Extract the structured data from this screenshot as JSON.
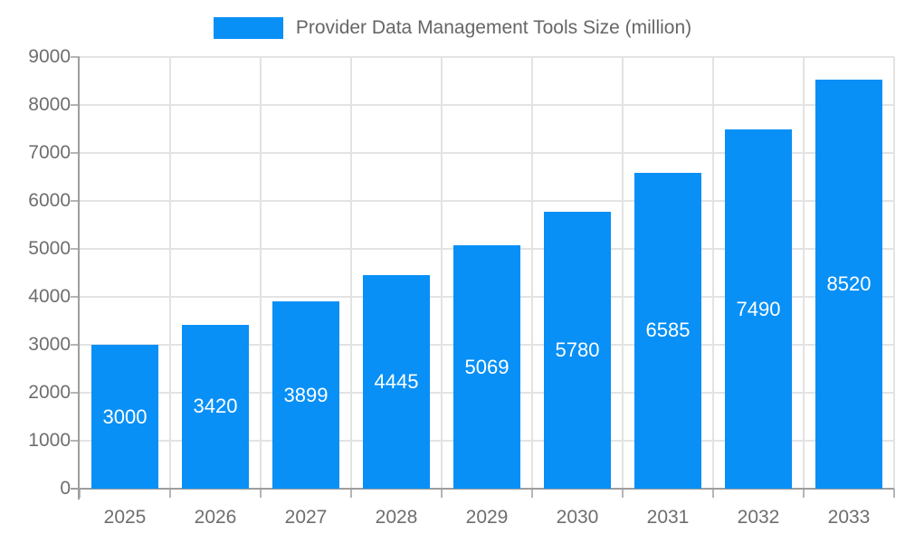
{
  "chart_data": {
    "type": "bar",
    "title": "Provider Data Management Tools Size (million)",
    "legend": [
      "Provider Data Management Tools Size (million)"
    ],
    "legend_position": "top",
    "categories": [
      "2025",
      "2026",
      "2027",
      "2028",
      "2029",
      "2030",
      "2031",
      "2032",
      "2033"
    ],
    "series": [
      {
        "name": "Provider Data Management Tools Size (million)",
        "values": [
          3000,
          3420,
          3899,
          4445,
          5069,
          5780,
          6585,
          7490,
          8520
        ]
      }
    ],
    "bar_value_labels": [
      "3000",
      "3420",
      "3899",
      "4445",
      "5069",
      "5780",
      "6585",
      "7490",
      "8520"
    ],
    "xlabel": "",
    "ylabel": "",
    "ylim": [
      0,
      9000
    ],
    "yticks": [
      0,
      1000,
      2000,
      3000,
      4000,
      5000,
      6000,
      7000,
      8000,
      9000
    ],
    "grid": true
  },
  "colors": {
    "bar": "#0890f6",
    "bar_label_text": "#ffffff",
    "grid_line": "#e3e3e3",
    "axis_line": "#9e9e9e",
    "tick_mark": "#b5b5b5",
    "tick_label": "#6e6e6e",
    "legend_text": "#666666",
    "background": "#ffffff"
  }
}
